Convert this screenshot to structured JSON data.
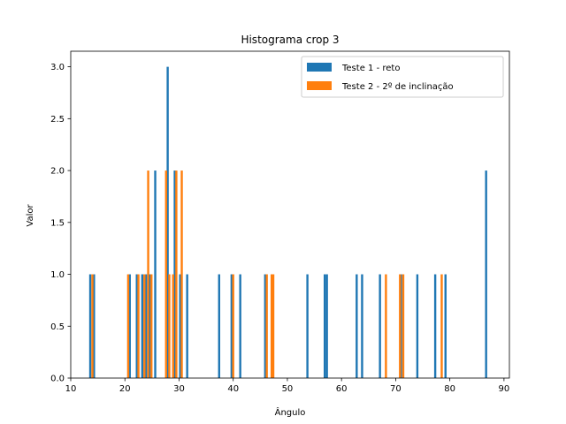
{
  "chart_data": {
    "type": "bar",
    "title": "Histograma crop 3",
    "xlabel": "Ângulo",
    "ylabel": "Valor",
    "xlim": [
      10,
      91
    ],
    "ylim": [
      0,
      3.15
    ],
    "x_ticks": [
      "10",
      "20",
      "30",
      "40",
      "50",
      "60",
      "70",
      "80",
      "90"
    ],
    "y_ticks": [
      "0.0",
      "0.5",
      "1.0",
      "1.5",
      "2.0",
      "2.5",
      "3.0"
    ],
    "grid": false,
    "legend_position": "top-right",
    "series": [
      {
        "name": "Teste 1 - reto",
        "color": "#1f77b4",
        "bins": [
          {
            "x": 13.6,
            "y": 1
          },
          {
            "x": 14.3,
            "y": 1
          },
          {
            "x": 20.9,
            "y": 1
          },
          {
            "x": 22.2,
            "y": 1
          },
          {
            "x": 23.2,
            "y": 1
          },
          {
            "x": 23.9,
            "y": 1
          },
          {
            "x": 24.6,
            "y": 1
          },
          {
            "x": 25.6,
            "y": 2
          },
          {
            "x": 27.9,
            "y": 3
          },
          {
            "x": 29.2,
            "y": 2
          },
          {
            "x": 30.2,
            "y": 1
          },
          {
            "x": 31.5,
            "y": 1
          },
          {
            "x": 37.4,
            "y": 1
          },
          {
            "x": 39.7,
            "y": 1
          },
          {
            "x": 41.3,
            "y": 1
          },
          {
            "x": 45.9,
            "y": 1
          },
          {
            "x": 53.7,
            "y": 1
          },
          {
            "x": 56.9,
            "y": 1
          },
          {
            "x": 57.3,
            "y": 1
          },
          {
            "x": 62.8,
            "y": 1
          },
          {
            "x": 63.8,
            "y": 1
          },
          {
            "x": 67.1,
            "y": 1
          },
          {
            "x": 71.0,
            "y": 1
          },
          {
            "x": 74.0,
            "y": 1
          },
          {
            "x": 77.3,
            "y": 1
          },
          {
            "x": 79.2,
            "y": 1
          },
          {
            "x": 86.7,
            "y": 2
          }
        ]
      },
      {
        "name": "Teste 2 - 2º de inclinação",
        "color": "#ff7f0e",
        "bins": [
          {
            "x": 14.0,
            "y": 1
          },
          {
            "x": 20.6,
            "y": 1
          },
          {
            "x": 22.5,
            "y": 1
          },
          {
            "x": 23.6,
            "y": 1
          },
          {
            "x": 24.3,
            "y": 2
          },
          {
            "x": 24.9,
            "y": 1
          },
          {
            "x": 27.6,
            "y": 2
          },
          {
            "x": 28.2,
            "y": 1
          },
          {
            "x": 28.9,
            "y": 1
          },
          {
            "x": 29.5,
            "y": 2
          },
          {
            "x": 30.5,
            "y": 2
          },
          {
            "x": 40.0,
            "y": 1
          },
          {
            "x": 46.2,
            "y": 1
          },
          {
            "x": 47.1,
            "y": 1
          },
          {
            "x": 47.4,
            "y": 1
          },
          {
            "x": 68.2,
            "y": 1
          },
          {
            "x": 70.8,
            "y": 1
          },
          {
            "x": 71.4,
            "y": 1
          },
          {
            "x": 78.5,
            "y": 1
          }
        ]
      }
    ]
  }
}
